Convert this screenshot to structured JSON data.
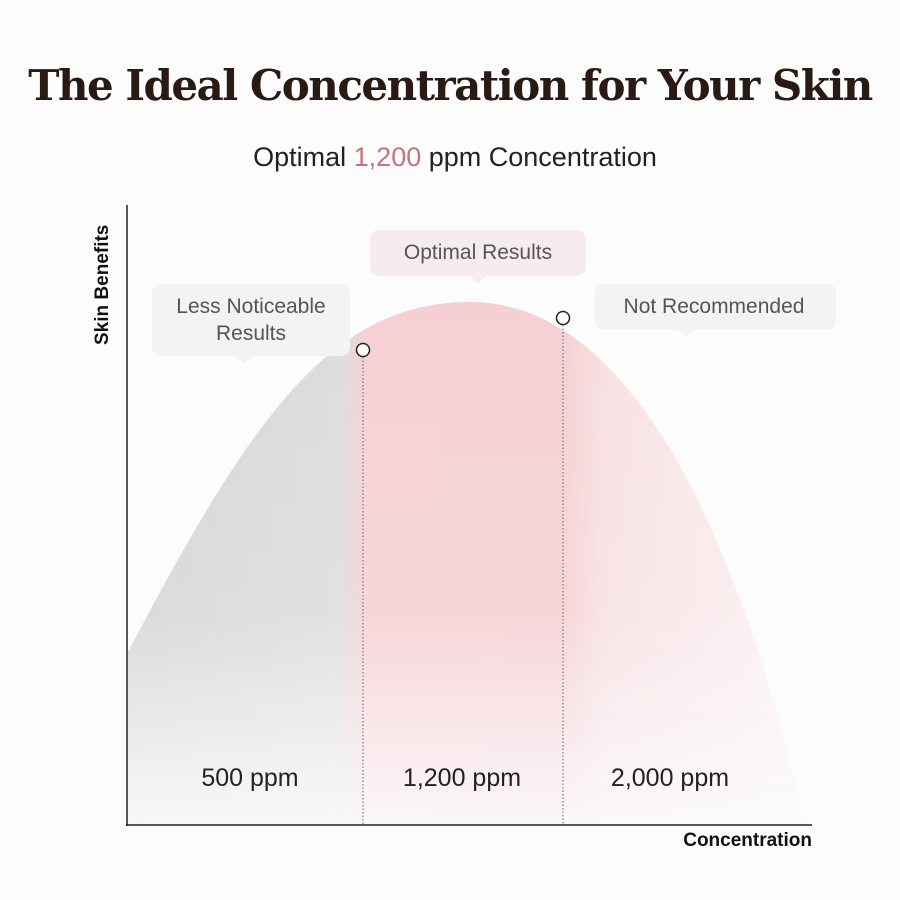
{
  "header": {
    "title": "The Ideal Concentration for Your Skin",
    "subtitle": {
      "before": "Optimal",
      "highlight": "1,200",
      "after": "ppm Concentration"
    }
  },
  "axes": {
    "y_label": "Skin Benefits",
    "x_label": "Concentration"
  },
  "zones": [
    {
      "callout": [
        "Less Noticeable",
        "Results"
      ],
      "level": "500 ppm"
    },
    {
      "callout": [
        "Optimal Results"
      ],
      "level": "1,200 ppm"
    },
    {
      "callout": [
        "Not Recommended"
      ],
      "level": "2,000 ppm"
    }
  ]
}
